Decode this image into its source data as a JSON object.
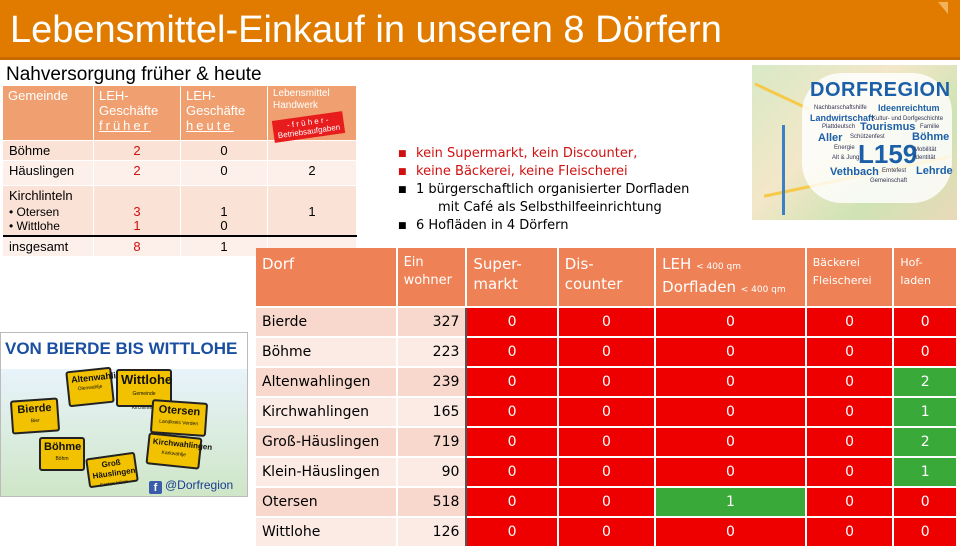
{
  "title": "Lebensmittel-Einkauf in unseren 8 Dörfern",
  "nahversorgung": {
    "title": "Nahversorgung früher & heute",
    "headers": {
      "gemeinde": "Gemeinde",
      "leh_frueher_1": "LEH-",
      "leh_frueher_2": "Geschäfte",
      "leh_frueher_3": "früher",
      "leh_heute_1": "LEH-",
      "leh_heute_2": "Geschäfte",
      "leh_heute_3": "heute",
      "handwerk_1": "Lebensmittel",
      "handwerk_2": "Handwerk",
      "stamp_1": "- f r ü h e r -",
      "stamp_2": "Betriebsaufgaben"
    },
    "rows": [
      {
        "name": "Böhme",
        "frueher": "2",
        "heute": "0",
        "handwerk": ""
      },
      {
        "name": "Häuslingen",
        "frueher": "2",
        "heute": "0",
        "handwerk": "2"
      },
      {
        "name": "Kirchlinteln",
        "sub1": "Otersen",
        "sub2": "Wittlohe",
        "frueher1": "3",
        "frueher2": "1",
        "heute1": "1",
        "heute2": "0",
        "handwerk": "1"
      },
      {
        "name": "insgesamt",
        "frueher": "8",
        "heute": "1",
        "handwerk": ""
      }
    ]
  },
  "bullets": [
    {
      "text": "kein Supermarkt, kein Discounter,",
      "color": "#d01010"
    },
    {
      "text": "keine Bäckerei, keine Fleischerei",
      "color": "#d01010"
    },
    {
      "text": "1 bürgerschaftlich organisierter Dorfladen",
      "cont": "mit Café als Selbsthilfeeinrichtung",
      "color": "#000000"
    },
    {
      "text": "6 Hofläden in 4 Dörfern",
      "color": "#000000"
    }
  ],
  "map": {
    "heading": "DORFREGION",
    "big": "L159",
    "words": [
      "Nachbarschaftshilfe",
      "Ideenreichtum",
      "Landwirtschaft",
      "Kultur- und Dorfgeschichte",
      "Plattdeutsch",
      "Tourismus",
      "Familie",
      "Aller",
      "Schützenfest",
      "Böhme",
      "Energie",
      "Mobilität",
      "Alt & Jung",
      "Identität",
      "Vethbach",
      "Erntefest",
      "Lehrde",
      "Gemeinschaft"
    ]
  },
  "vonbierde": {
    "heading": "VON BIERDE BIS WITTLOHE",
    "signs": [
      {
        "name": "Altenwahlingen",
        "sub": "Olenwahlje"
      },
      {
        "name": "Wittlohe",
        "sub": "Gemeinde Kirchlinteln"
      },
      {
        "name": "Bierde",
        "sub": "Bier"
      },
      {
        "name": "Otersen",
        "sub": "Landkreis Verden"
      },
      {
        "name": "Böhme",
        "sub": "Böhm"
      },
      {
        "name": "Kirchwahlingen",
        "sub": "Karkwahlje"
      },
      {
        "name": "Groß Häuslingen",
        "sub": "Groten Hüsn"
      }
    ],
    "facebook": "@Dorfregion"
  },
  "dorf_table": {
    "headers": {
      "dorf": "Dorf",
      "ew_1": "Ein",
      "ew_2": "wohner",
      "super_1": "Super-",
      "super_2": "markt",
      "disc_1": "Dis-",
      "disc_2": "counter",
      "leh_1": "LEH",
      "leh_1_small": "< 400 qm",
      "leh_2": "Dorfladen",
      "leh_2_small": "< 400 qm",
      "baeck_1": "Bäckerei",
      "baeck_2": "Fleischerei",
      "hof_1": "Hof-",
      "hof_2": "laden"
    },
    "rows": [
      {
        "dorf": "Bierde",
        "ew": "327",
        "vals": [
          "0",
          "0",
          "0",
          "0",
          "0"
        ],
        "colors": [
          "red",
          "red",
          "red",
          "red",
          "red"
        ]
      },
      {
        "dorf": "Böhme",
        "ew": "223",
        "vals": [
          "0",
          "0",
          "0",
          "0",
          "0"
        ],
        "colors": [
          "red",
          "red",
          "red",
          "red",
          "red"
        ]
      },
      {
        "dorf": "Altenwahlingen",
        "ew": "239",
        "vals": [
          "0",
          "0",
          "0",
          "0",
          "2"
        ],
        "colors": [
          "red",
          "red",
          "red",
          "red",
          "green"
        ]
      },
      {
        "dorf": "Kirchwahlingen",
        "ew": "165",
        "vals": [
          "0",
          "0",
          "0",
          "0",
          "1"
        ],
        "colors": [
          "red",
          "red",
          "red",
          "red",
          "green"
        ]
      },
      {
        "dorf": "Groß-Häuslingen",
        "ew": "719",
        "vals": [
          "0",
          "0",
          "0",
          "0",
          "2"
        ],
        "colors": [
          "red",
          "red",
          "red",
          "red",
          "green"
        ]
      },
      {
        "dorf": "Klein-Häuslingen",
        "ew": "90",
        "vals": [
          "0",
          "0",
          "0",
          "0",
          "1"
        ],
        "colors": [
          "red",
          "red",
          "red",
          "red",
          "green"
        ]
      },
      {
        "dorf": "Otersen",
        "ew": "518",
        "vals": [
          "0",
          "0",
          "1",
          "0",
          "0"
        ],
        "colors": [
          "red",
          "red",
          "green",
          "red",
          "red"
        ]
      },
      {
        "dorf": "Wittlohe",
        "ew": "126",
        "vals": [
          "0",
          "0",
          "0",
          "0",
          "0"
        ],
        "colors": [
          "red",
          "red",
          "red",
          "red",
          "red"
        ]
      }
    ]
  }
}
